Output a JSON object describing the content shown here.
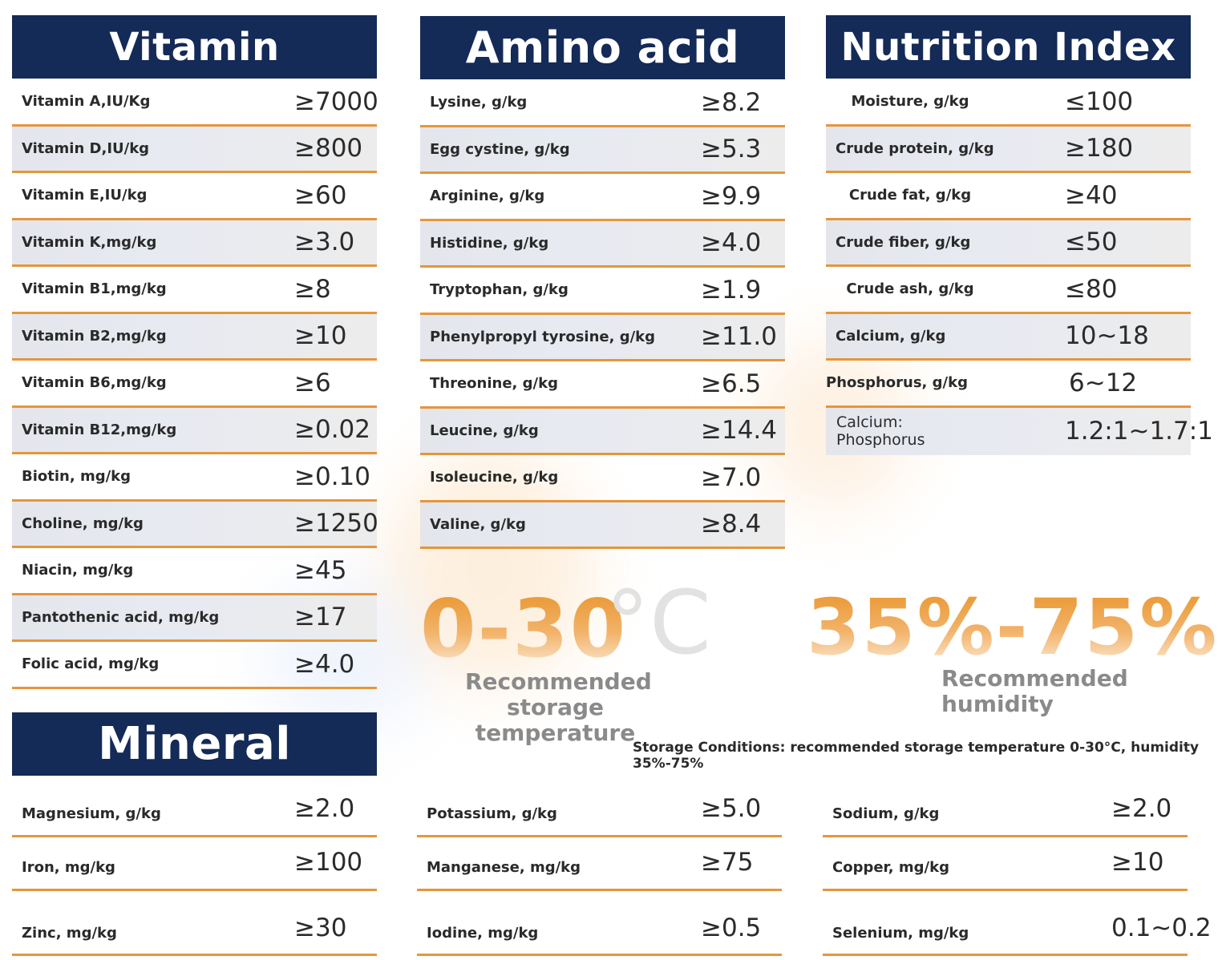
{
  "vitamin": {
    "title": "Vitamin",
    "rows": [
      {
        "label": "Vitamin A,IU/Kg",
        "value": "≥7000"
      },
      {
        "label": "Vitamin D,IU/kg",
        "value": "≥800"
      },
      {
        "label": "Vitamin E,IU/kg",
        "value": "≥60"
      },
      {
        "label": "Vitamin K,mg/kg",
        "value": "≥3.0"
      },
      {
        "label": "Vitamin B1,mg/kg",
        "value": "≥8"
      },
      {
        "label": "Vitamin B2,mg/kg",
        "value": "≥10"
      },
      {
        "label": "Vitamin B6,mg/kg",
        "value": "≥6"
      },
      {
        "label": "Vitamin B12,mg/kg",
        "value": "≥0.02"
      },
      {
        "label": "Biotin, mg/kg",
        "value": "≥0.10"
      },
      {
        "label": "Choline, mg/kg",
        "value": "≥1250"
      },
      {
        "label": "Niacin, mg/kg",
        "value": "≥45"
      },
      {
        "label": "Pantothenic acid, mg/kg",
        "value": "≥17"
      },
      {
        "label": "Folic acid, mg/kg",
        "value": "≥4.0"
      }
    ]
  },
  "amino": {
    "title": "Amino acid",
    "rows": [
      {
        "label": "Lysine, g/kg",
        "value": "≥8.2"
      },
      {
        "label": "Egg cystine, g/kg",
        "value": "≥5.3"
      },
      {
        "label": "Arginine, g/kg",
        "value": "≥9.9"
      },
      {
        "label": "Histidine, g/kg",
        "value": "≥4.0"
      },
      {
        "label": "Tryptophan, g/kg",
        "value": "≥1.9"
      },
      {
        "label": "Phenylpropyl tyrosine, g/kg",
        "value": "≥11.0"
      },
      {
        "label": "Threonine, g/kg",
        "value": "≥6.5"
      },
      {
        "label": "Leucine, g/kg",
        "value": "≥14.4"
      },
      {
        "label": "Isoleucine, g/kg",
        "value": "≥7.0"
      },
      {
        "label": "Valine, g/kg",
        "value": "≥8.4"
      }
    ]
  },
  "nutrition": {
    "title": "Nutrition Index",
    "rows": [
      {
        "label": "Moisture, g/kg",
        "value": "≤100"
      },
      {
        "label": "Crude protein, g/kg",
        "value": "≥180"
      },
      {
        "label": "Crude fat, g/kg",
        "value": "≥40"
      },
      {
        "label": "Crude fiber, g/kg",
        "value": "≤50"
      },
      {
        "label": "Crude ash, g/kg",
        "value": "≤80"
      },
      {
        "label": "Calcium, g/kg",
        "value": "10~18"
      },
      {
        "label": "Phosphorus, g/kg",
        "value": "6~12"
      }
    ],
    "ratio_label_1": "Calcium:",
    "ratio_label_2": "Phosphorus",
    "ratio_value": "1.2:1~1.7:1"
  },
  "mineral": {
    "title": "Mineral",
    "col1": [
      {
        "label": "Magnesium, g/kg",
        "value": "≥2.0"
      },
      {
        "label": "Iron, mg/kg",
        "value": "≥100"
      },
      {
        "label": "Zinc, mg/kg",
        "value": "≥30"
      }
    ],
    "col2": [
      {
        "label": "Potassium, g/kg",
        "value": "≥5.0"
      },
      {
        "label": "Manganese, mg/kg",
        "value": "≥75"
      },
      {
        "label": "Iodine, mg/kg",
        "value": "≥0.5"
      }
    ],
    "col3": [
      {
        "label": "Sodium, g/kg",
        "value": "≥2.0"
      },
      {
        "label": "Copper, mg/kg",
        "value": "≥10"
      },
      {
        "label": "Selenium, mg/kg",
        "value": "0.1~0.2"
      }
    ]
  },
  "storage": {
    "temp_range": "0-30",
    "temp_unit": "°C",
    "temp_caption_1": "Recommended",
    "temp_caption_2": "storage",
    "temp_caption_3": "temperature",
    "humidity_range": "35%-75%",
    "humidity_caption_1": "Recommended",
    "humidity_caption_2": "humidity",
    "conditions": "Storage Conditions: recommended storage temperature 0-30°C, humidity 35%-75%"
  },
  "colors": {
    "header": "#142a57",
    "accent": "#e5963b"
  }
}
